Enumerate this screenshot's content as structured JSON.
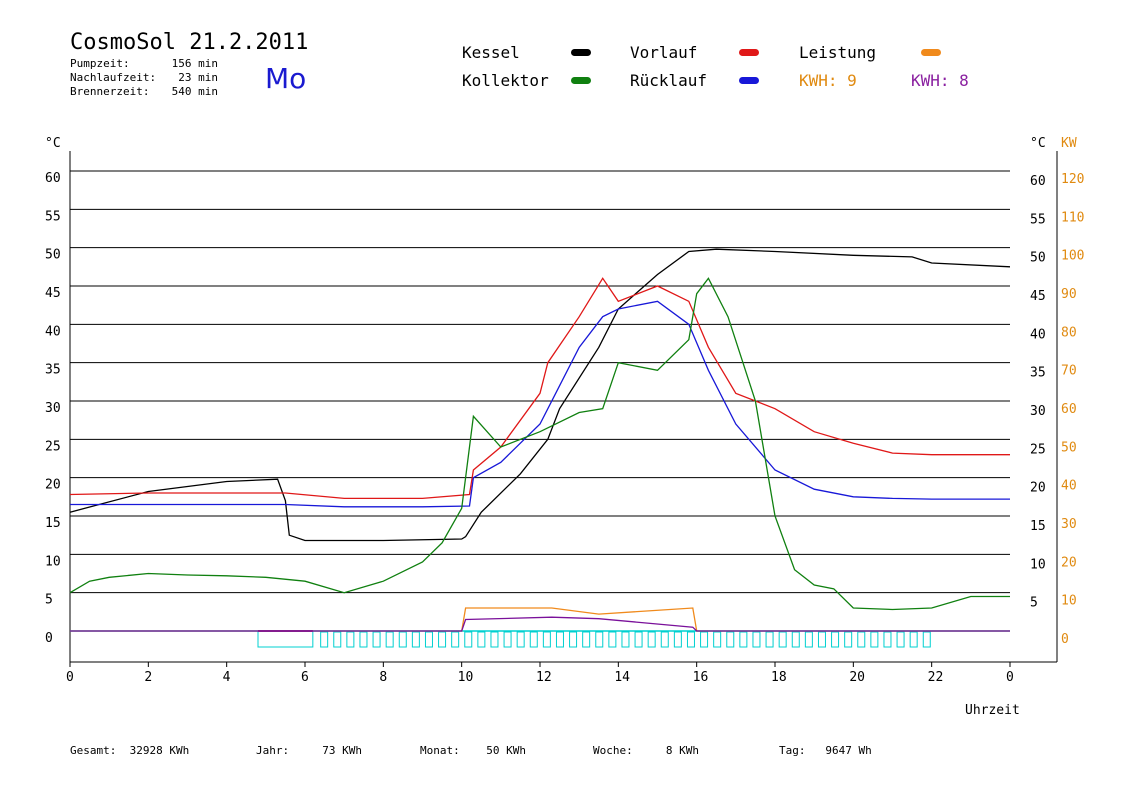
{
  "header": {
    "title": "CosmoSol 21.2.2011",
    "weekday": "Mo",
    "stats": [
      {
        "label": "Pumpzeit:",
        "value": "156 min"
      },
      {
        "label": "Nachlaufzeit:",
        "value": "23 min"
      },
      {
        "label": "Brennerzeit:",
        "value": "540 min"
      }
    ]
  },
  "legend": {
    "kessel": {
      "label": "Kessel",
      "color": "#000000"
    },
    "vorlauf": {
      "label": "Vorlauf",
      "color": "#e01818"
    },
    "leistung": {
      "label": "Leistung",
      "color": "#f08a1c"
    },
    "kollektor": {
      "label": "Kollektor",
      "color": "#108010"
    },
    "ruecklauf": {
      "label": "Rücklauf",
      "color": "#1818d8"
    },
    "kwh_orange": "KWH: 9",
    "kwh_purple": "KWH: 8"
  },
  "colors": {
    "kwh_orange": "#e08a10",
    "kwh_purple": "#8a20a0",
    "baseline": "#00d0d0",
    "purple_line": "#7a109a"
  },
  "footer": {
    "gesamt": "Gesamt:  32928 KWh",
    "jahr": "Jahr:     73 KWh",
    "monat": "Monat:    50 KWh",
    "woche": "Woche:     8 KWh",
    "tag": "Tag:   9647 Wh"
  },
  "chart_data": {
    "type": "line",
    "xlabel": "Uhrzeit",
    "ylabel_left": "°C",
    "ylabel_right": "°C",
    "ylabel_right2": "KW",
    "xlim": [
      0,
      24
    ],
    "ylim": [
      0,
      60
    ],
    "y2lim": [
      0,
      120
    ],
    "xticks": [
      "0",
      "2",
      "4",
      "6",
      "8",
      "10",
      "12",
      "14",
      "16",
      "18",
      "20",
      "22",
      "0"
    ],
    "yticks": [
      "0",
      "5",
      "10",
      "15",
      "20",
      "25",
      "30",
      "35",
      "40",
      "45",
      "50",
      "55",
      "60"
    ],
    "yticks_right": [
      "5",
      "10",
      "15",
      "20",
      "25",
      "30",
      "35",
      "40",
      "45",
      "50",
      "55",
      "60"
    ],
    "yticks_kw": [
      "0",
      "10",
      "20",
      "30",
      "40",
      "50",
      "60",
      "70",
      "80",
      "90",
      "100",
      "110",
      "120"
    ],
    "grid": true,
    "series": [
      {
        "name": "Kessel",
        "color": "#000000",
        "x": [
          0,
          2,
          4,
          5.3,
          5.5,
          5.6,
          6,
          8,
          10,
          10.1,
          10.5,
          11.5,
          12.2,
          12.5,
          13.5,
          14,
          15,
          15.8,
          16.5,
          18,
          20,
          21.5,
          22,
          24
        ],
        "y": [
          15.5,
          18.2,
          19.5,
          19.8,
          17,
          12.5,
          11.8,
          11.8,
          12,
          12.3,
          15.5,
          20.5,
          25,
          29,
          37,
          42,
          46.5,
          49.5,
          49.8,
          49.5,
          49,
          48.8,
          48,
          47.5
        ]
      },
      {
        "name": "Vorlauf",
        "color": "#e01818",
        "x": [
          0,
          2,
          4,
          5.5,
          7,
          9,
          10.2,
          10.3,
          11,
          12,
          12.2,
          13,
          13.6,
          14,
          15,
          15.8,
          16.3,
          17,
          18,
          19,
          20,
          21,
          22,
          24
        ],
        "y": [
          17.8,
          18,
          18,
          18,
          17.3,
          17.3,
          17.8,
          21,
          24,
          31,
          35,
          41,
          46,
          43,
          45,
          43,
          37,
          31,
          29,
          26,
          24.5,
          23.2,
          23,
          23
        ]
      },
      {
        "name": "Rücklauf",
        "color": "#1818d8",
        "x": [
          0,
          2,
          4,
          5.5,
          7,
          9,
          10.2,
          10.3,
          11,
          12,
          12.5,
          13,
          13.6,
          14,
          15,
          15.8,
          16.3,
          17,
          18,
          19,
          20,
          21,
          22,
          24
        ],
        "y": [
          16.5,
          16.5,
          16.5,
          16.5,
          16.2,
          16.2,
          16.3,
          20,
          22,
          27,
          32,
          37,
          41,
          42,
          43,
          40,
          34,
          27,
          21,
          18.5,
          17.5,
          17.3,
          17.2,
          17.2
        ]
      },
      {
        "name": "Kollektor",
        "color": "#108010",
        "x": [
          0,
          0.5,
          1,
          2,
          3,
          4,
          5,
          6,
          7,
          8,
          9,
          9.5,
          10,
          10.3,
          11,
          12,
          13,
          13.6,
          14,
          15,
          15.8,
          16,
          16.3,
          16.8,
          17.5,
          18,
          18.5,
          19,
          19.5,
          20,
          21,
          22,
          23,
          24
        ],
        "y": [
          5,
          6.5,
          7,
          7.5,
          7.3,
          7.2,
          7,
          6.5,
          5,
          6.5,
          9,
          11.5,
          16,
          28,
          24,
          26,
          28.5,
          29,
          35,
          34,
          38,
          44,
          46,
          41,
          30,
          15,
          8,
          6,
          5.5,
          3,
          2.8,
          3,
          4.5,
          4.5
        ]
      },
      {
        "name": "Leistung",
        "color": "#f08a1c",
        "x": [
          0,
          10,
          10.1,
          12.3,
          13.5,
          15.9,
          16,
          24
        ],
        "y": [
          0,
          0,
          3,
          3,
          2.2,
          3,
          0,
          0
        ]
      },
      {
        "name": "KWH 8",
        "color": "#7a109a",
        "x": [
          0,
          10,
          10.1,
          12.3,
          13.5,
          15.9,
          16,
          24
        ],
        "y": [
          0,
          0,
          1.5,
          1.8,
          1.6,
          0.5,
          0,
          0
        ]
      }
    ]
  }
}
